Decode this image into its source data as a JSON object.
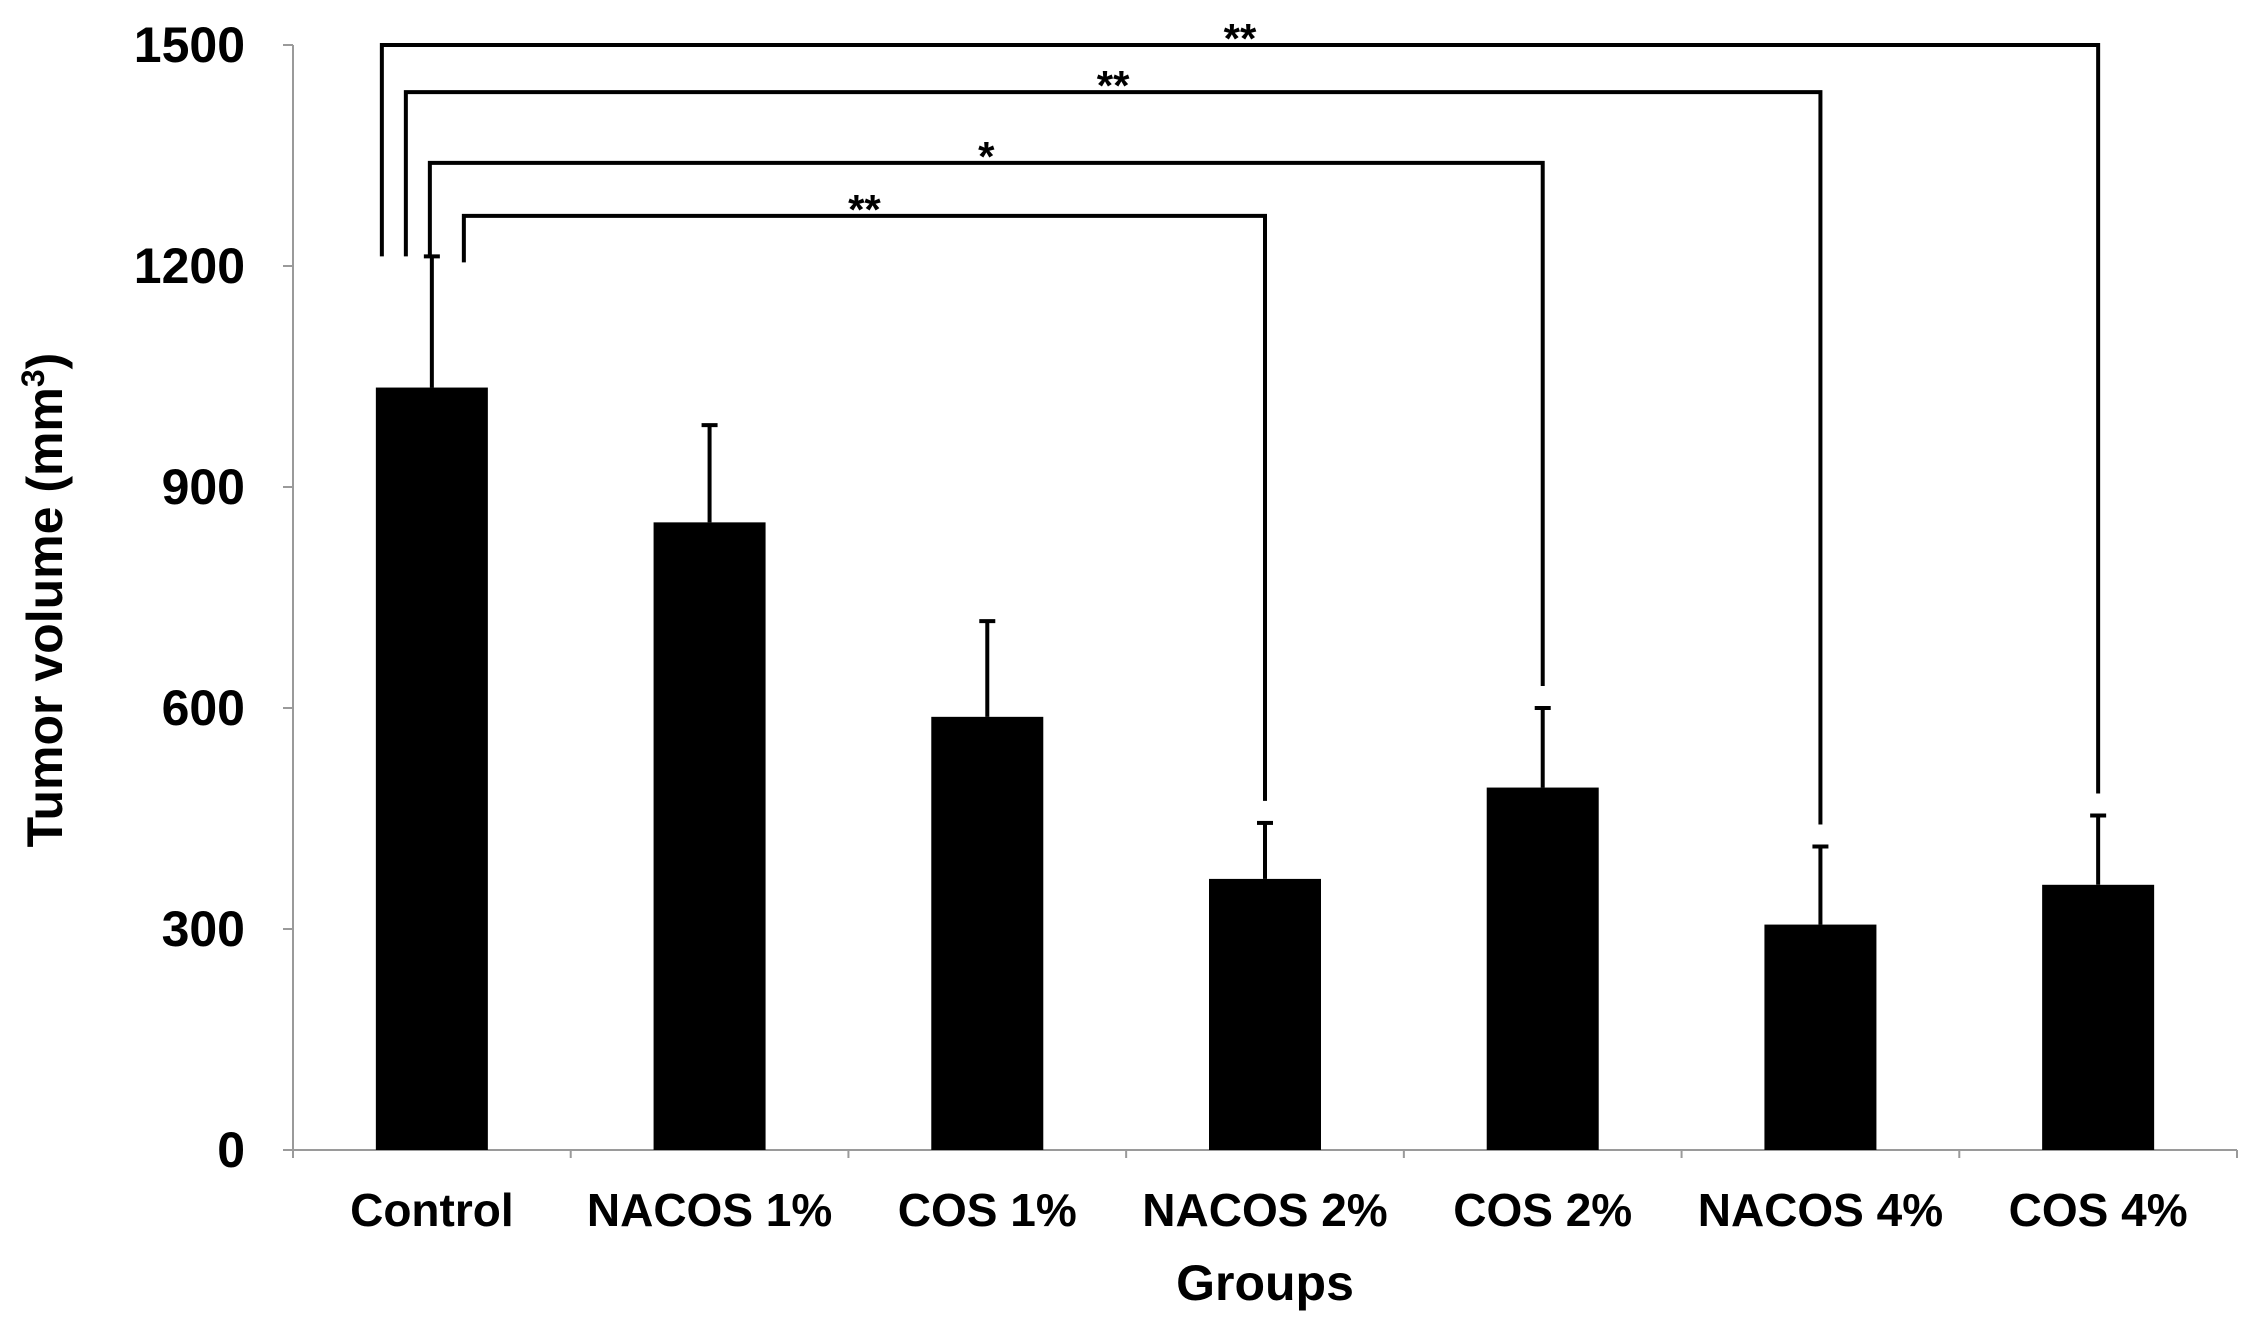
{
  "chart_data": {
    "type": "bar",
    "title": "",
    "xlabel": "Groups",
    "ylabel_main": "Tumor volume (mm",
    "ylabel_sup": "3",
    "ylabel_close": ")",
    "ylabel": "Tumor volume (mm3)",
    "ylim": [
      0,
      1500
    ],
    "yticks": [
      0,
      300,
      600,
      900,
      1200,
      1500
    ],
    "categories": [
      "Control",
      "NACOS 1%",
      "COS 1%",
      "NACOS 2%",
      "COS 2%",
      "NACOS 4%",
      "COS 4%"
    ],
    "series": [
      {
        "name": "Tumor volume",
        "values": [
          1035,
          852,
          588,
          368,
          492,
          306,
          360
        ],
        "errors": [
          178,
          132,
          130,
          76,
          108,
          106,
          94
        ],
        "color": "#000000"
      }
    ],
    "significance": [
      {
        "from": "Control",
        "to": "NACOS 2%",
        "label": "**",
        "level": 1268
      },
      {
        "from": "Control",
        "to": "COS 2%",
        "label": "*",
        "level": 1340
      },
      {
        "from": "Control",
        "to": "NACOS 4%",
        "label": "**",
        "level": 1436
      },
      {
        "from": "Control",
        "to": "COS 4%",
        "label": "**",
        "level": 1500
      }
    ],
    "grid": false,
    "legend": "none"
  }
}
